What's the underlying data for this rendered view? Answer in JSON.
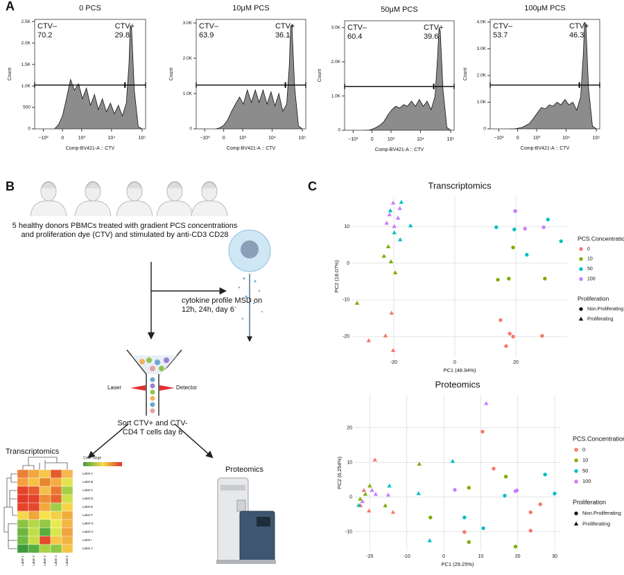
{
  "panel_labels": [
    "A",
    "B",
    "C"
  ],
  "chart_data": [
    {
      "type": "area",
      "title": "0 PCS",
      "xlabel": "Comp-BV421-A :: CTV",
      "ylabel": "Count",
      "xscale": "biexponential",
      "color": "#8c8c8c",
      "x": [
        -320,
        -150,
        0,
        150,
        320,
        510,
        760,
        1070,
        1470,
        2020,
        2750,
        3700,
        5000,
        6800,
        9200,
        12400,
        16700,
        22500,
        30400,
        37100,
        41000,
        45300,
        55400,
        74700,
        100900
      ],
      "values": [
        0,
        100,
        300,
        700,
        1150,
        900,
        1050,
        700,
        950,
        550,
        800,
        450,
        700,
        400,
        600,
        350,
        550,
        300,
        600,
        1500,
        2400,
        2350,
        900,
        50,
        0
      ],
      "xlim": [
        -2000,
        130000
      ],
      "xticks": [
        {
          "value": -1000,
          "label": "−10³"
        },
        0,
        {
          "value": 1000,
          "label": "10³"
        },
        {
          "value": 10000,
          "label": "10⁴"
        },
        {
          "value": 100000,
          "label": "10⁵"
        }
      ],
      "ylim": [
        0,
        2550
      ],
      "yticks": [
        0,
        500,
        {
          "value": 1000,
          "label": "1.0K"
        },
        {
          "value": 1500,
          "label": "1.5K"
        },
        {
          "value": 2000,
          "label": "2.0K"
        },
        {
          "value": 2500,
          "label": "2.5K"
        }
      ],
      "gates": [
        {
          "name": "CTV–",
          "value": 70.2,
          "range": [
            -2000,
            27000
          ]
        },
        {
          "name": "CTV+",
          "value": 29.8,
          "range": [
            28000,
            130000
          ]
        }
      ]
    },
    {
      "type": "area",
      "title": "10μM PCS",
      "xlabel": "Comp-BV421-A :: CTV",
      "ylabel": "Count",
      "xscale": "biexponential",
      "color": "#8c8c8c",
      "x": [
        -320,
        -150,
        0,
        150,
        320,
        510,
        760,
        1070,
        1470,
        2020,
        2750,
        3700,
        5000,
        6800,
        9200,
        12400,
        16700,
        22500,
        30400,
        37100,
        41000,
        45300,
        55400,
        74700,
        100900
      ],
      "values": [
        0,
        30,
        100,
        250,
        500,
        700,
        900,
        700,
        1100,
        750,
        1100,
        750,
        1100,
        700,
        1050,
        650,
        1000,
        500,
        700,
        1800,
        2900,
        2950,
        1200,
        80,
        0
      ],
      "xlim": [
        -2000,
        130000
      ],
      "xticks": [
        {
          "value": -1000,
          "label": "−10³"
        },
        0,
        {
          "value": 1000,
          "label": "10³"
        },
        {
          "value": 10000,
          "label": "10⁴"
        },
        {
          "value": 100000,
          "label": "10⁵"
        }
      ],
      "ylim": [
        0,
        3100
      ],
      "yticks": [
        0,
        {
          "value": 1000,
          "label": "1.0K"
        },
        {
          "value": 2000,
          "label": "2.0K"
        },
        {
          "value": 3000,
          "label": "3.0K"
        }
      ],
      "gates": [
        {
          "name": "CTV–",
          "value": 63.9,
          "range": [
            -2000,
            27000
          ]
        },
        {
          "name": "CTV+",
          "value": 36.1,
          "range": [
            28000,
            130000
          ]
        }
      ]
    },
    {
      "type": "area",
      "title": "50μM PCS",
      "xlabel": "Comp-BV421-A :: CTV",
      "ylabel": "Count",
      "xscale": "biexponential",
      "color": "#8c8c8c",
      "x": [
        -320,
        -150,
        0,
        150,
        320,
        510,
        760,
        1070,
        1470,
        2020,
        2750,
        3700,
        5000,
        6800,
        9200,
        12400,
        16700,
        22500,
        30400,
        37100,
        41000,
        45300,
        55400,
        74700,
        100900
      ],
      "values": [
        0,
        0,
        30,
        80,
        150,
        250,
        450,
        600,
        700,
        650,
        750,
        700,
        850,
        700,
        900,
        700,
        850,
        600,
        1000,
        2200,
        3000,
        2900,
        1200,
        80,
        0
      ],
      "xlim": [
        -2000,
        130000
      ],
      "xticks": [
        {
          "value": -1000,
          "label": "−10³"
        },
        0,
        {
          "value": 1000,
          "label": "10³"
        },
        {
          "value": 10000,
          "label": "10⁴"
        },
        {
          "value": 100000,
          "label": "10⁵"
        }
      ],
      "ylim": [
        0,
        3200
      ],
      "yticks": [
        0,
        {
          "value": 1000,
          "label": "1.0K"
        },
        {
          "value": 2000,
          "label": "2.0K"
        },
        {
          "value": 3000,
          "label": "3.0K"
        }
      ],
      "gates": [
        {
          "name": "CTV–",
          "value": 60.4,
          "range": [
            -2000,
            27000
          ]
        },
        {
          "name": "CTV+",
          "value": 39.6,
          "range": [
            28000,
            130000
          ]
        }
      ]
    },
    {
      "type": "area",
      "title": "100μM PCS",
      "xlabel": "Comp-BV421-A :: CTV",
      "ylabel": "Count",
      "xscale": "biexponential",
      "color": "#8c8c8c",
      "x": [
        -320,
        -150,
        0,
        150,
        320,
        510,
        760,
        1070,
        1470,
        2020,
        2750,
        3700,
        5000,
        6800,
        9200,
        12400,
        16700,
        22500,
        30400,
        37100,
        41000,
        45300,
        55400,
        74700,
        100900
      ],
      "values": [
        0,
        0,
        20,
        50,
        120,
        200,
        400,
        600,
        800,
        750,
        900,
        850,
        1000,
        900,
        1100,
        900,
        1000,
        700,
        1200,
        2800,
        4000,
        3900,
        1500,
        100,
        0
      ],
      "xlim": [
        -2000,
        130000
      ],
      "xticks": [
        {
          "value": -1000,
          "label": "−10³"
        },
        0,
        {
          "value": 1000,
          "label": "10³"
        },
        {
          "value": 10000,
          "label": "10⁴"
        },
        {
          "value": 100000,
          "label": "10⁵"
        }
      ],
      "ylim": [
        0,
        4100
      ],
      "yticks": [
        0,
        {
          "value": 1000,
          "label": "1.0K"
        },
        {
          "value": 2000,
          "label": "2.0K"
        },
        {
          "value": 3000,
          "label": "3.0K"
        },
        {
          "value": 4000,
          "label": "4.0K"
        }
      ],
      "gates": [
        {
          "name": "CTV–",
          "value": 53.7,
          "range": [
            -2000,
            27000
          ]
        },
        {
          "name": "CTV+",
          "value": 46.3,
          "range": [
            28000,
            130000
          ]
        }
      ]
    },
    {
      "type": "scatter",
      "title": "Transcriptomics",
      "xlabel": "PC1 (48.94%)",
      "ylabel": "PC2 (18.07%)",
      "grid": true,
      "xlim": [
        -33.6,
        36.8
      ],
      "xticks": [
        -20,
        0,
        20
      ],
      "ylim": [
        -25.5,
        18.3
      ],
      "yticks": [
        -20,
        -10,
        0,
        10
      ],
      "legend_title": "PCS.Concentration",
      "shape_legend": {
        "title": "Proliferation",
        "names": [
          "Non.Proliferating",
          "Proliferating"
        ],
        "shapes": [
          "circle",
          "triangle"
        ]
      },
      "series": [
        {
          "name": "0",
          "color": "#F8766D",
          "x": [
            -20.7,
            -22.7,
            -20.2,
            -28.2,
            15,
            18,
            19.1,
            16.8,
            28.6
          ],
          "values": [
            -13.6,
            -19.8,
            -23.8,
            -21.1,
            -15.5,
            -19.2,
            -20,
            -22.6,
            -19.8
          ],
          "shape": [
            1,
            1,
            1,
            1,
            0,
            0,
            0,
            0,
            0
          ]
        },
        {
          "name": "10",
          "color": "#7CAE00",
          "x": [
            -21.8,
            -23.2,
            -20.9,
            -19.5,
            -32,
            19.1,
            14.1,
            17.7,
            29.5
          ],
          "values": [
            4.5,
            1.9,
            0.4,
            -2.6,
            -10.9,
            4.3,
            -4.5,
            -4.2,
            -4.2
          ],
          "shape": [
            1,
            1,
            1,
            1,
            1,
            0,
            0,
            0,
            0
          ]
        },
        {
          "name": "50",
          "color": "#00BFC4",
          "x": [
            -17.5,
            -21.1,
            -14.5,
            -19.8,
            -17.9,
            13.6,
            19.5,
            30.5,
            34.8,
            23.6
          ],
          "values": [
            16.6,
            14.3,
            10.2,
            8.3,
            6.4,
            9.8,
            9.2,
            11.9,
            6,
            2.3
          ],
          "shape": [
            1,
            1,
            1,
            1,
            1,
            0,
            0,
            0,
            0,
            0
          ]
        },
        {
          "name": "100",
          "color": "#C77CFF",
          "x": [
            -20.2,
            -18,
            -21.4,
            -18.6,
            -22.3,
            -19.8,
            19.8,
            23,
            29.1
          ],
          "values": [
            16.4,
            14.9,
            13.2,
            12.3,
            10.9,
            10,
            14.2,
            9.4,
            9.8
          ],
          "shape": [
            1,
            1,
            1,
            1,
            1,
            1,
            0,
            0,
            0
          ]
        }
      ]
    },
    {
      "type": "scatter",
      "title": "Proteomics",
      "xlabel": "PC1 (29.25%)",
      "ylabel": "PC2 (6.254%)",
      "grid": true,
      "xlim": [
        -24,
        31.5
      ],
      "xticks": [
        -20,
        -10,
        0,
        10,
        20,
        30
      ],
      "ylim": [
        -15.5,
        29.5
      ],
      "yticks": [
        -10,
        0,
        10,
        20
      ],
      "legend_title": "PCS.Concentration",
      "shape_legend": {
        "title": "Proliferation",
        "names": [
          "Non.Proliferating",
          "Proliferating"
        ],
        "shapes": [
          "circle",
          "triangle"
        ]
      },
      "series": [
        {
          "name": "0",
          "color": "#F8766D",
          "x": [
            -18.6,
            -21.6,
            -20.2,
            -13.7,
            -22.5,
            10.5,
            13.5,
            26.1,
            23.5,
            23.5,
            5.6
          ],
          "values": [
            10.7,
            1.9,
            -4,
            -4.4,
            -2.5,
            18.9,
            8.2,
            -2.1,
            -4.4,
            -9.7,
            -10.1
          ],
          "shape": [
            1,
            1,
            1,
            1,
            1,
            0,
            0,
            0,
            0,
            0,
            0
          ]
        },
        {
          "name": "10",
          "color": "#7CAE00",
          "x": [
            -20,
            -21.2,
            -22.6,
            -15.8,
            -6.6,
            -3.6,
            16.8,
            6.8,
            6.8,
            19.4
          ],
          "values": [
            3.2,
            0.8,
            -0.6,
            -2.5,
            9.5,
            -5.9,
            5.9,
            2.7,
            -13,
            -14.3
          ],
          "shape": [
            1,
            1,
            1,
            1,
            1,
            0,
            0,
            0,
            0,
            0
          ]
        },
        {
          "name": "50",
          "color": "#00BFC4",
          "x": [
            -14.7,
            -6.8,
            2.4,
            -3.8,
            -23,
            27.4,
            30,
            16.5,
            5.6,
            10.7
          ],
          "values": [
            3.2,
            1,
            10.3,
            -12.6,
            -2.4,
            6.5,
            1,
            0.4,
            -5.9,
            -9
          ],
          "shape": [
            1,
            1,
            1,
            1,
            1,
            0,
            0,
            0,
            0,
            0
          ]
        },
        {
          "name": "100",
          "color": "#C77CFF",
          "x": [
            11.5,
            -19.4,
            -18.4,
            -15,
            -22,
            3,
            19.4,
            19.8
          ],
          "values": [
            27,
            1.9,
            0.8,
            0.6,
            -1.3,
            2.1,
            1.7,
            1.9
          ],
          "shape": [
            1,
            1,
            1,
            1,
            1,
            0,
            0,
            0
          ]
        }
      ]
    }
  ],
  "diagram": {
    "donors_text": "5 healthy donors PBMCs treated with gradient PCS concentrations and proliferation dye (CTV) and stimulated by anti-CD3 CD28",
    "cytokine_text": "cytokine profile MSD on 12h, 24h, day 6",
    "laser": "Laser",
    "detector": "Detector",
    "sort_text": "Sort CTV+ and CTV- CD4 T cells day 6",
    "transcriptomics": "Transcriptomics",
    "proteomics": "Proteomics",
    "color_range": "Color range",
    "heatmap": {
      "rows": [
        "Label A",
        "Label B",
        "Label C",
        "Label D",
        "Label E",
        "Label F",
        "Label G",
        "Label H",
        "Label I",
        "Label J"
      ],
      "columns": [
        "Label 1",
        "Label 2",
        "Label 3",
        "Label 4",
        "Label 5"
      ],
      "colors": [
        [
          "#e8803a",
          "#f2a63f",
          "#f6c649",
          "#e45c2e",
          "#f5b750"
        ],
        [
          "#f2a040",
          "#f6c046",
          "#e9862f",
          "#f4ad3f",
          "#e4e34e"
        ],
        [
          "#e5442b",
          "#e85a2f",
          "#f5be46",
          "#eb782f",
          "#a6cf45"
        ],
        [
          "#e23a28",
          "#e3432a",
          "#ef8e35",
          "#e7642f",
          "#cde04b"
        ],
        [
          "#e4442b",
          "#e5492b",
          "#f2a83d",
          "#9fce47",
          "#f6d24a"
        ],
        [
          "#f5d74a",
          "#efa63b",
          "#f9e34b",
          "#f4d049",
          "#efad3e"
        ],
        [
          "#8cc342",
          "#b5d846",
          "#92c843",
          "#eaea50",
          "#f2b642"
        ],
        [
          "#6db640",
          "#c2dc48",
          "#59ad3e",
          "#d8e64c",
          "#efa23d"
        ],
        [
          "#71b941",
          "#c6dd48",
          "#e34a2b",
          "#f5c748",
          "#f1b442"
        ],
        [
          "#3f9a3a",
          "#5aae3f",
          "#a9d146",
          "#8fc644",
          "#f3c648"
        ]
      ]
    }
  }
}
